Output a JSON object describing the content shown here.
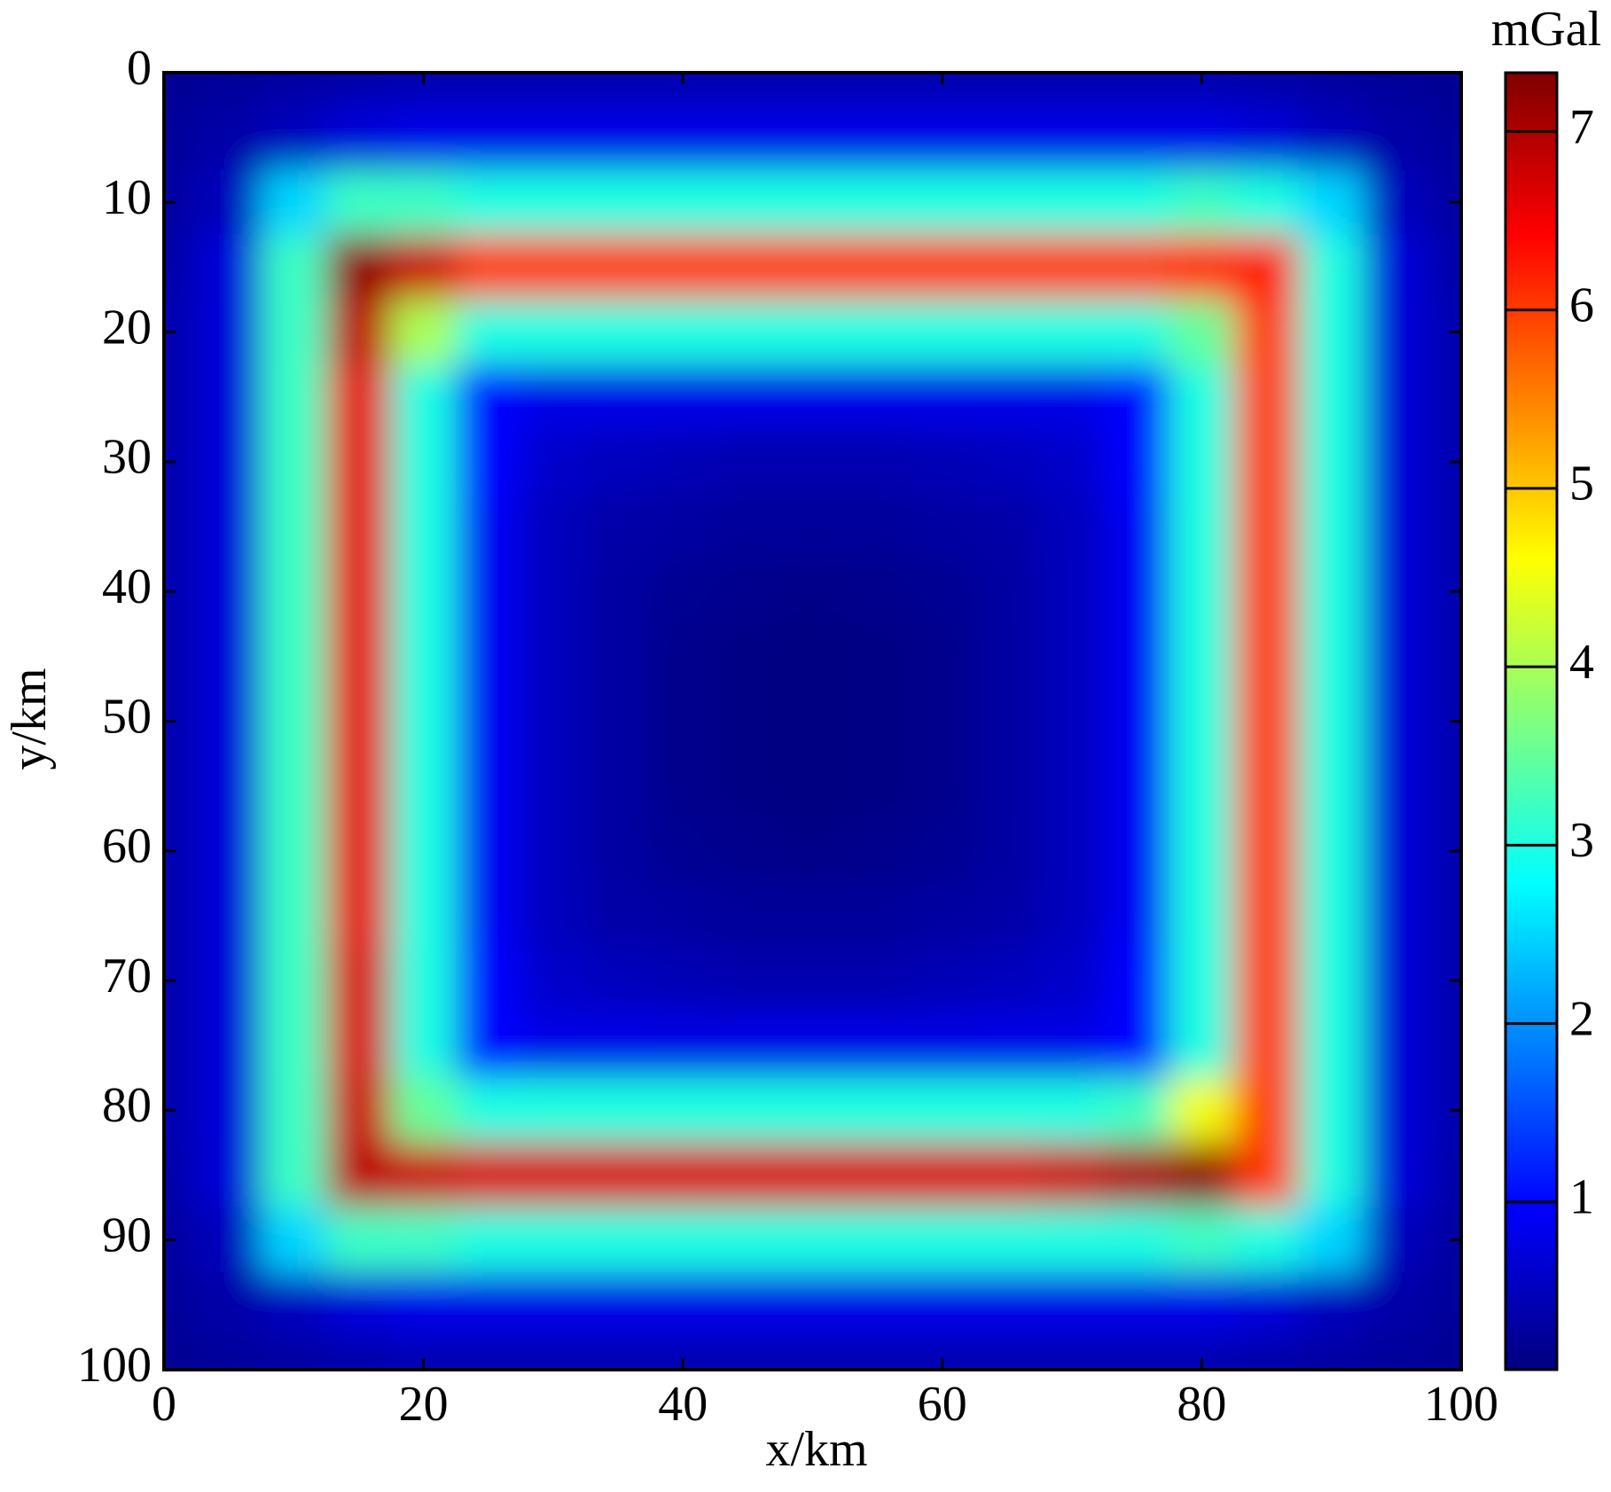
{
  "chart_data": {
    "type": "heatmap",
    "colormap": "jet",
    "x_label": "x/km",
    "y_label": "y/km",
    "colorbar_label": "mGal",
    "x": [
      0,
      5,
      10,
      15,
      20,
      25,
      30,
      35,
      40,
      45,
      50,
      55,
      60,
      65,
      70,
      75,
      80,
      85,
      90,
      95,
      100
    ],
    "y": [
      0,
      5,
      10,
      15,
      20,
      25,
      30,
      35,
      40,
      45,
      50,
      55,
      60,
      65,
      70,
      75,
      80,
      85,
      90,
      95,
      100
    ],
    "z": [
      [
        0.2,
        0.25,
        0.3,
        0.35,
        0.4,
        0.4,
        0.4,
        0.4,
        0.4,
        0.4,
        0.4,
        0.4,
        0.4,
        0.4,
        0.4,
        0.4,
        0.4,
        0.35,
        0.3,
        0.25,
        0.2
      ],
      [
        0.25,
        0.35,
        0.5,
        0.7,
        0.8,
        0.8,
        0.8,
        0.8,
        0.8,
        0.8,
        0.8,
        0.8,
        0.8,
        0.8,
        0.8,
        0.8,
        0.8,
        0.7,
        0.5,
        0.35,
        0.25
      ],
      [
        0.3,
        0.5,
        2.5,
        3.2,
        3.2,
        3.0,
        3.0,
        3.0,
        3.0,
        3.0,
        3.0,
        3.0,
        3.0,
        3.0,
        3.0,
        3.0,
        3.2,
        3.0,
        2.5,
        0.5,
        0.3
      ],
      [
        0.35,
        0.7,
        3.2,
        7.2,
        6.8,
        6.0,
        6.0,
        6.0,
        6.0,
        6.0,
        6.0,
        6.0,
        6.0,
        6.0,
        6.0,
        6.0,
        6.1,
        6.2,
        3.0,
        0.7,
        0.35
      ],
      [
        0.4,
        0.7,
        3.2,
        6.9,
        4.0,
        3.0,
        3.0,
        3.0,
        3.0,
        3.0,
        3.0,
        3.0,
        3.0,
        3.0,
        3.0,
        3.0,
        3.5,
        6.0,
        3.0,
        0.7,
        0.4
      ],
      [
        0.4,
        0.7,
        3.2,
        6.6,
        3.0,
        1.0,
        0.8,
        0.8,
        0.8,
        0.8,
        0.8,
        0.8,
        0.8,
        0.8,
        0.8,
        1.0,
        3.0,
        6.0,
        3.0,
        0.7,
        0.4
      ],
      [
        0.4,
        0.7,
        3.2,
        6.6,
        3.0,
        1.0,
        0.6,
        0.5,
        0.45,
        0.4,
        0.4,
        0.4,
        0.45,
        0.5,
        0.6,
        1.0,
        3.0,
        6.0,
        3.0,
        0.7,
        0.4
      ],
      [
        0.4,
        0.7,
        3.2,
        6.6,
        3.0,
        0.9,
        0.5,
        0.35,
        0.3,
        0.25,
        0.25,
        0.25,
        0.3,
        0.35,
        0.5,
        0.9,
        3.0,
        6.0,
        3.0,
        0.7,
        0.4
      ],
      [
        0.4,
        0.7,
        3.2,
        6.6,
        3.0,
        0.9,
        0.5,
        0.3,
        0.2,
        0.15,
        0.12,
        0.15,
        0.2,
        0.3,
        0.5,
        0.9,
        3.0,
        6.0,
        3.0,
        0.7,
        0.4
      ],
      [
        0.4,
        0.7,
        3.2,
        6.6,
        3.0,
        0.9,
        0.5,
        0.3,
        0.15,
        0.1,
        0.08,
        0.1,
        0.15,
        0.3,
        0.5,
        0.9,
        3.0,
        6.0,
        3.0,
        0.7,
        0.4
      ],
      [
        0.4,
        0.7,
        3.2,
        6.6,
        3.0,
        0.9,
        0.5,
        0.3,
        0.15,
        0.1,
        0.08,
        0.1,
        0.15,
        0.3,
        0.5,
        0.9,
        3.0,
        6.0,
        3.0,
        0.7,
        0.4
      ],
      [
        0.4,
        0.7,
        3.2,
        6.6,
        3.0,
        0.9,
        0.5,
        0.3,
        0.15,
        0.1,
        0.08,
        0.1,
        0.15,
        0.3,
        0.5,
        0.9,
        3.0,
        6.0,
        3.0,
        0.7,
        0.4
      ],
      [
        0.4,
        0.7,
        3.2,
        6.6,
        3.0,
        0.9,
        0.5,
        0.3,
        0.2,
        0.15,
        0.12,
        0.15,
        0.2,
        0.3,
        0.5,
        0.9,
        3.0,
        6.0,
        3.0,
        0.7,
        0.4
      ],
      [
        0.4,
        0.7,
        3.2,
        6.6,
        3.0,
        0.9,
        0.5,
        0.35,
        0.3,
        0.25,
        0.25,
        0.25,
        0.3,
        0.35,
        0.5,
        0.9,
        3.0,
        6.0,
        3.0,
        0.7,
        0.4
      ],
      [
        0.4,
        0.7,
        3.2,
        6.7,
        3.0,
        1.0,
        0.6,
        0.5,
        0.45,
        0.4,
        0.4,
        0.4,
        0.45,
        0.5,
        0.6,
        1.0,
        3.0,
        6.0,
        3.0,
        0.7,
        0.4
      ],
      [
        0.4,
        0.7,
        3.2,
        6.7,
        3.0,
        1.0,
        0.8,
        0.8,
        0.8,
        0.8,
        0.8,
        0.8,
        0.8,
        0.8,
        0.8,
        1.0,
        3.0,
        6.0,
        3.0,
        0.7,
        0.4
      ],
      [
        0.4,
        0.7,
        3.2,
        6.8,
        3.5,
        3.0,
        3.0,
        3.0,
        3.0,
        3.0,
        3.0,
        3.0,
        3.0,
        3.0,
        3.0,
        3.2,
        4.5,
        6.0,
        3.0,
        0.7,
        0.4
      ],
      [
        0.35,
        0.7,
        3.2,
        6.9,
        6.8,
        6.7,
        6.7,
        6.7,
        6.7,
        6.7,
        6.7,
        6.7,
        6.7,
        6.7,
        6.8,
        7.0,
        7.2,
        6.0,
        3.0,
        0.7,
        0.35
      ],
      [
        0.3,
        0.5,
        2.5,
        3.2,
        3.2,
        3.0,
        3.0,
        3.0,
        3.0,
        3.0,
        3.0,
        3.0,
        3.0,
        3.0,
        3.0,
        3.0,
        3.2,
        3.0,
        2.5,
        0.5,
        0.3
      ],
      [
        0.25,
        0.35,
        0.5,
        0.7,
        0.8,
        0.8,
        0.8,
        0.8,
        0.8,
        0.8,
        0.8,
        0.8,
        0.8,
        0.8,
        0.8,
        0.8,
        0.8,
        0.7,
        0.5,
        0.35,
        0.25
      ],
      [
        0.2,
        0.25,
        0.3,
        0.35,
        0.4,
        0.4,
        0.4,
        0.4,
        0.4,
        0.4,
        0.4,
        0.4,
        0.4,
        0.4,
        0.4,
        0.4,
        0.4,
        0.35,
        0.3,
        0.25,
        0.2
      ]
    ],
    "xlim": [
      0,
      100
    ],
    "ylim": [
      0,
      100
    ],
    "y_inverted": true,
    "xticks": [
      0,
      20,
      40,
      60,
      80,
      100
    ],
    "yticks": [
      0,
      10,
      20,
      30,
      40,
      50,
      60,
      70,
      80,
      90,
      100
    ],
    "zlim": [
      0.06,
      7.33
    ],
    "colorbar_ticks": [
      1,
      2,
      3,
      4,
      5,
      6,
      7
    ]
  }
}
